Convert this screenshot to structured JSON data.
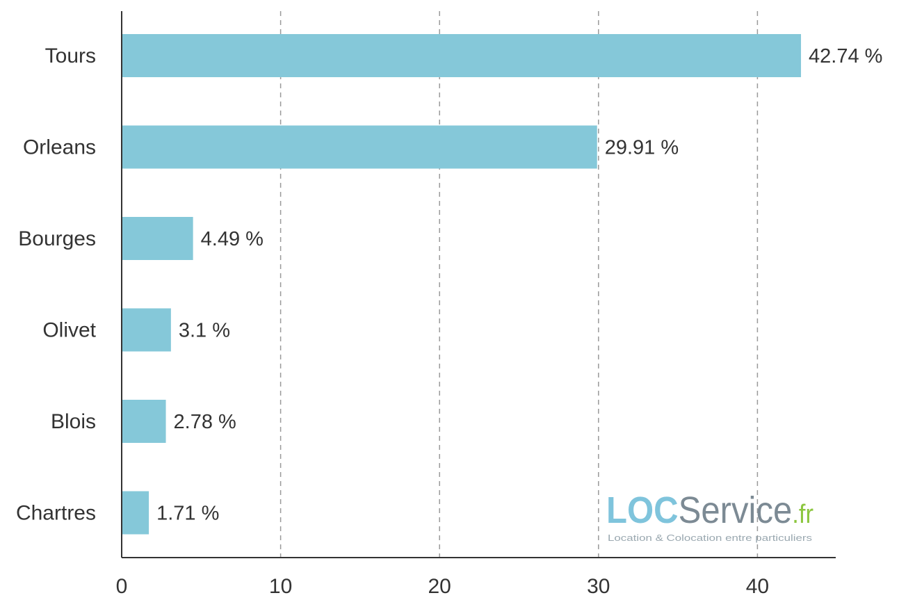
{
  "chart_data": {
    "type": "bar",
    "orientation": "horizontal",
    "categories": [
      "Tours",
      "Orleans",
      "Bourges",
      "Olivet",
      "Blois",
      "Chartres"
    ],
    "values": [
      42.74,
      29.91,
      4.49,
      3.1,
      2.78,
      1.71
    ],
    "value_labels": [
      "42.74 %",
      "29.91 %",
      "4.49 %",
      "3.1 %",
      "2.78 %",
      "1.71 %"
    ],
    "x_ticks": [
      "0",
      "10",
      "20",
      "30",
      "40"
    ],
    "xlim": [
      0,
      45
    ],
    "grid": "vertical-dashed",
    "bar_color": "#85c8d9"
  },
  "logo": {
    "brand_loc": "LOC",
    "brand_service": "Service",
    "brand_tld": ".fr",
    "tagline": "Location & Colocation entre particuliers",
    "color_loc": "#7fc4dc",
    "color_service": "#7c8a94",
    "color_tld": "#8cc63f"
  }
}
